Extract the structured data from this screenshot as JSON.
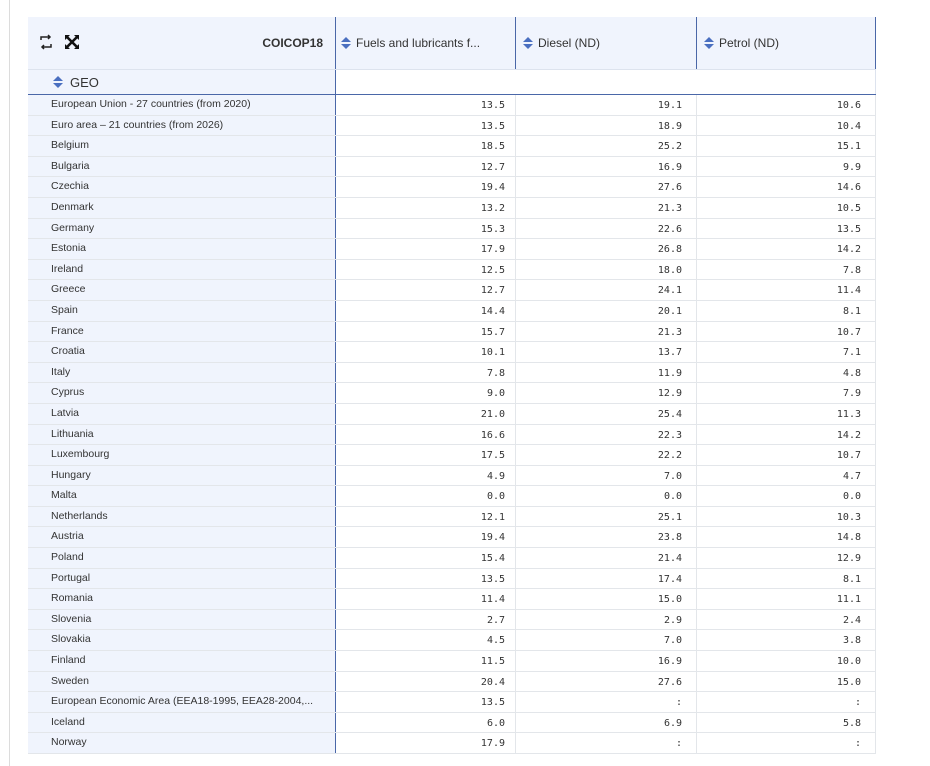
{
  "header": {
    "dimension_label": "COICOP18",
    "row_dimension": "GEO",
    "columns": [
      "Fuels and lubricants f...",
      "Diesel (ND)",
      "Petrol (ND)"
    ]
  },
  "icons": [
    "swap-axes-icon",
    "fullscreen-icon",
    "sort-icon"
  ],
  "colors": {
    "header_bg": "#f0f4fd",
    "border_accent": "#4a67a8",
    "sort_icon": "#4a6fc0"
  },
  "rows": [
    {
      "geo": "European Union - 27 countries (from 2020)",
      "values": [
        "13.5",
        "19.1",
        "10.6"
      ]
    },
    {
      "geo": "Euro area – 21 countries (from 2026)",
      "values": [
        "13.5",
        "18.9",
        "10.4"
      ]
    },
    {
      "geo": "Belgium",
      "values": [
        "18.5",
        "25.2",
        "15.1"
      ]
    },
    {
      "geo": "Bulgaria",
      "values": [
        "12.7",
        "16.9",
        "9.9"
      ]
    },
    {
      "geo": "Czechia",
      "values": [
        "19.4",
        "27.6",
        "14.6"
      ]
    },
    {
      "geo": "Denmark",
      "values": [
        "13.2",
        "21.3",
        "10.5"
      ]
    },
    {
      "geo": "Germany",
      "values": [
        "15.3",
        "22.6",
        "13.5"
      ]
    },
    {
      "geo": "Estonia",
      "values": [
        "17.9",
        "26.8",
        "14.2"
      ]
    },
    {
      "geo": "Ireland",
      "values": [
        "12.5",
        "18.0",
        "7.8"
      ]
    },
    {
      "geo": "Greece",
      "values": [
        "12.7",
        "24.1",
        "11.4"
      ]
    },
    {
      "geo": "Spain",
      "values": [
        "14.4",
        "20.1",
        "8.1"
      ]
    },
    {
      "geo": "France",
      "values": [
        "15.7",
        "21.3",
        "10.7"
      ]
    },
    {
      "geo": "Croatia",
      "values": [
        "10.1",
        "13.7",
        "7.1"
      ]
    },
    {
      "geo": "Italy",
      "values": [
        "7.8",
        "11.9",
        "4.8"
      ]
    },
    {
      "geo": "Cyprus",
      "values": [
        "9.0",
        "12.9",
        "7.9"
      ]
    },
    {
      "geo": "Latvia",
      "values": [
        "21.0",
        "25.4",
        "11.3"
      ]
    },
    {
      "geo": "Lithuania",
      "values": [
        "16.6",
        "22.3",
        "14.2"
      ]
    },
    {
      "geo": "Luxembourg",
      "values": [
        "17.5",
        "22.2",
        "10.7"
      ]
    },
    {
      "geo": "Hungary",
      "values": [
        "4.9",
        "7.0",
        "4.7"
      ]
    },
    {
      "geo": "Malta",
      "values": [
        "0.0",
        "0.0",
        "0.0"
      ]
    },
    {
      "geo": "Netherlands",
      "values": [
        "12.1",
        "25.1",
        "10.3"
      ]
    },
    {
      "geo": "Austria",
      "values": [
        "19.4",
        "23.8",
        "14.8"
      ]
    },
    {
      "geo": "Poland",
      "values": [
        "15.4",
        "21.4",
        "12.9"
      ]
    },
    {
      "geo": "Portugal",
      "values": [
        "13.5",
        "17.4",
        "8.1"
      ]
    },
    {
      "geo": "Romania",
      "values": [
        "11.4",
        "15.0",
        "11.1"
      ]
    },
    {
      "geo": "Slovenia",
      "values": [
        "2.7",
        "2.9",
        "2.4"
      ]
    },
    {
      "geo": "Slovakia",
      "values": [
        "4.5",
        "7.0",
        "3.8"
      ]
    },
    {
      "geo": "Finland",
      "values": [
        "11.5",
        "16.9",
        "10.0"
      ]
    },
    {
      "geo": "Sweden",
      "values": [
        "20.4",
        "27.6",
        "15.0"
      ]
    },
    {
      "geo": "European Economic Area (EEA18-1995, EEA28-2004,...",
      "values": [
        "13.5",
        ":",
        ":"
      ]
    },
    {
      "geo": "Iceland",
      "values": [
        "6.0",
        "6.9",
        "5.8"
      ]
    },
    {
      "geo": "Norway",
      "values": [
        "17.9",
        ":",
        ":"
      ]
    }
  ]
}
